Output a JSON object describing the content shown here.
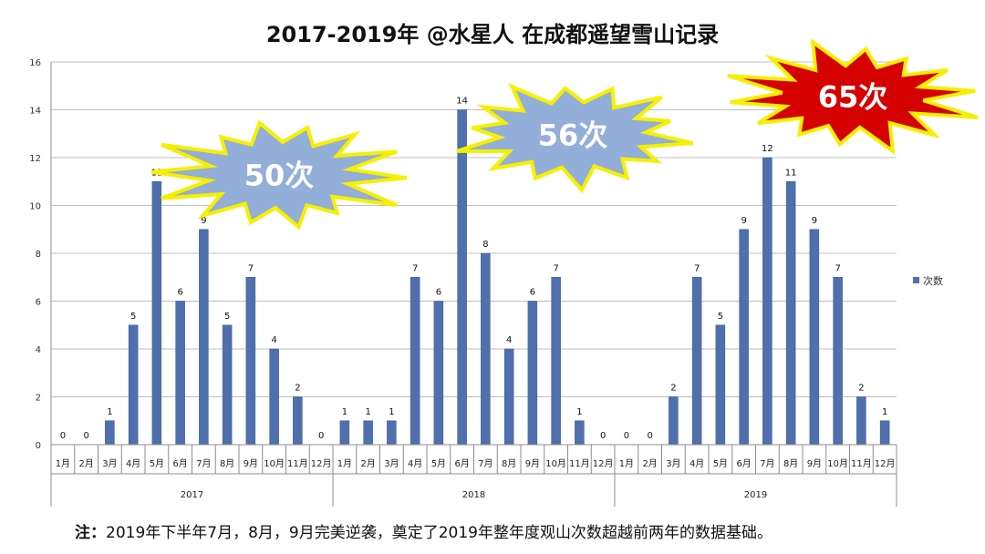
{
  "chart_data": {
    "type": "bar",
    "title": "2017-2019年 @水星人 在成都遥望雪山记录",
    "legend": "次数",
    "legend_position": "right",
    "ylim": [
      0,
      16
    ],
    "y_ticks": [
      "0",
      "2",
      "4",
      "6",
      "8",
      "10",
      "12",
      "14",
      "16"
    ],
    "grid": true,
    "years": [
      "2017",
      "2018",
      "2019"
    ],
    "months": [
      "1月",
      "2月",
      "3月",
      "4月",
      "5月",
      "6月",
      "7月",
      "8月",
      "9月",
      "10月",
      "11月",
      "12月"
    ],
    "series": [
      {
        "name": "次数",
        "color": "#4f6fad",
        "values": [
          0,
          0,
          1,
          5,
          11,
          6,
          9,
          5,
          7,
          4,
          2,
          0,
          1,
          1,
          1,
          7,
          6,
          14,
          8,
          4,
          6,
          7,
          1,
          0,
          0,
          0,
          2,
          7,
          5,
          9,
          12,
          11,
          9,
          7,
          2,
          1
        ]
      }
    ],
    "annotations": [
      {
        "text": "50次",
        "fill": "#93aed8",
        "text_color": "#ffffff"
      },
      {
        "text": "56次",
        "fill": "#93aed8",
        "text_color": "#ffffff"
      },
      {
        "text": "65次",
        "fill": "#d50000",
        "text_color": "#ffffff"
      }
    ]
  },
  "footnote": {
    "label": "注：",
    "text": "2019年下半年7月，8月，9月完美逆袭，奠定了2019年整年度观山次数超越前两年的数据基础。"
  }
}
